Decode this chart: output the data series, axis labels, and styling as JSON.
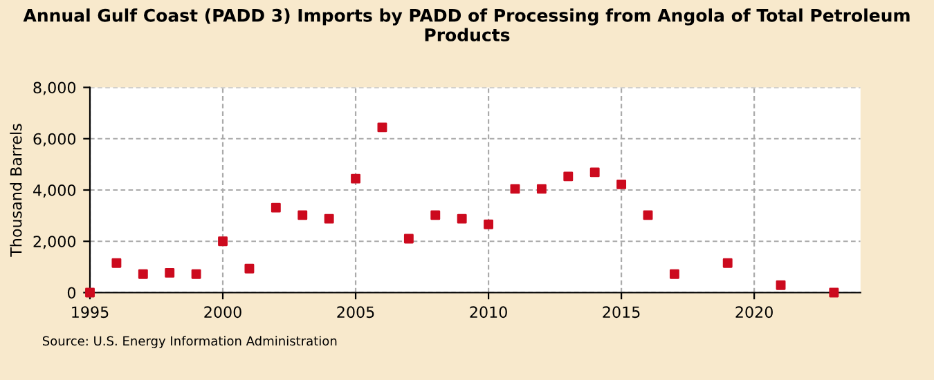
{
  "chart_data": {
    "type": "scatter",
    "title": "Annual Gulf Coast (PADD 3) Imports by PADD of Processing from Angola of Total Petroleum Products",
    "ylabel": "Thousand Barrels",
    "x": [
      1995,
      1996,
      1997,
      1998,
      1999,
      2000,
      2001,
      2002,
      2003,
      2004,
      2005,
      2006,
      2007,
      2008,
      2009,
      2010,
      2011,
      2012,
      2013,
      2014,
      2015,
      2016,
      2017,
      2019,
      2021,
      2023
    ],
    "series": [
      {
        "color": "#cc0a1e",
        "values": [
          0,
          1150,
          720,
          770,
          720,
          2000,
          935,
          3310,
          3020,
          2880,
          4440,
          6440,
          2100,
          3020,
          2880,
          2660,
          4045,
          4045,
          4530,
          4690,
          4220,
          3020,
          720,
          1150,
          290,
          0
        ]
      }
    ],
    "xlim": [
      1995,
      2024
    ],
    "xticks": [
      1995,
      2000,
      2005,
      2010,
      2015,
      2020
    ],
    "ylim": [
      0,
      8000
    ],
    "yticks": [
      {
        "value": 0,
        "label": "0"
      },
      {
        "value": 2000,
        "label": "2,000"
      },
      {
        "value": 4000,
        "label": "4,000"
      },
      {
        "value": 6000,
        "label": "6,000"
      },
      {
        "value": 8000,
        "label": "8,000"
      }
    ],
    "grid": true,
    "marker": "square",
    "annotations": [
      "Source: U.S. Energy Information Administration"
    ]
  }
}
